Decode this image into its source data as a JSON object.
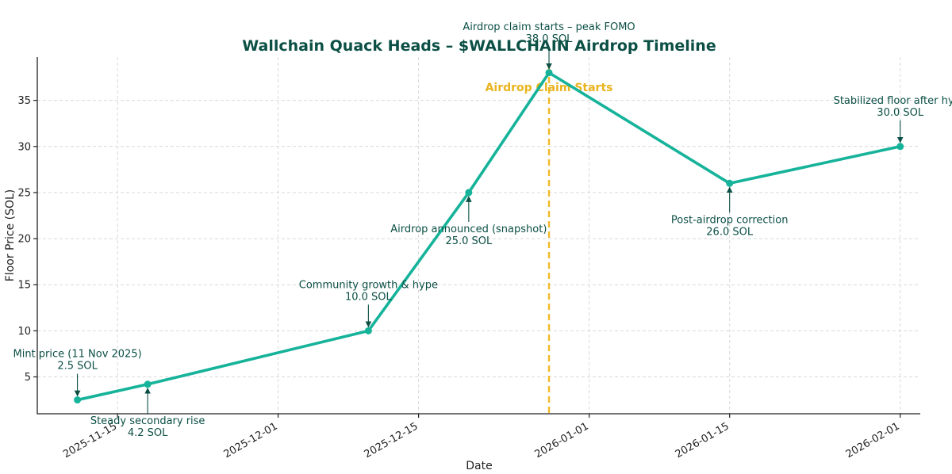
{
  "chart_data": {
    "type": "line",
    "title": "Wallchain Quack Heads – $WALLCHAIN Airdrop Timeline",
    "xlabel": "Date",
    "ylabel": "Floor Price (SOL)",
    "grid": true,
    "x_domain": [
      "2025-11-07",
      "2026-02-03"
    ],
    "ylim": [
      1.0,
      39.7
    ],
    "x_ticks": [
      "2025-11-15",
      "2025-12-01",
      "2025-12-15",
      "2026-01-01",
      "2026-01-15",
      "2026-02-01"
    ],
    "y_ticks": [
      5,
      10,
      15,
      20,
      25,
      30,
      35
    ],
    "series": [
      {
        "name": "Floor Price",
        "color": "#16b39a",
        "x": [
          "2025-11-11",
          "2025-11-18",
          "2025-12-10",
          "2025-12-20",
          "2025-12-28",
          "2026-01-15",
          "2026-02-01"
        ],
        "values": [
          2.5,
          4.2,
          10.0,
          25.0,
          38.0,
          26.0,
          30.0
        ]
      }
    ],
    "annotations": [
      {
        "point": 0,
        "lines": [
          "Mint price (11 Nov 2025)",
          "2.5 SOL"
        ],
        "position": "above"
      },
      {
        "point": 1,
        "lines": [
          "Steady secondary rise",
          "4.2 SOL"
        ],
        "position": "below"
      },
      {
        "point": 2,
        "lines": [
          "Community growth & hype",
          "10.0 SOL"
        ],
        "position": "above"
      },
      {
        "point": 3,
        "lines": [
          "Airdrop announced (snapshot)",
          "25.0 SOL"
        ],
        "position": "below"
      },
      {
        "point": 4,
        "lines": [
          "Airdrop claim starts – peak FOMO",
          "38.0 SOL"
        ],
        "position": "above"
      },
      {
        "point": 5,
        "lines": [
          "Post-airdrop correction",
          "26.0 SOL"
        ],
        "position": "below"
      },
      {
        "point": 6,
        "lines": [
          "Stabilized floor after hype",
          "30.0 SOL"
        ],
        "position": "above"
      }
    ],
    "event_line": {
      "date": "2025-12-28",
      "label": "Airdrop Claim Starts",
      "color": "#f0b929"
    }
  }
}
